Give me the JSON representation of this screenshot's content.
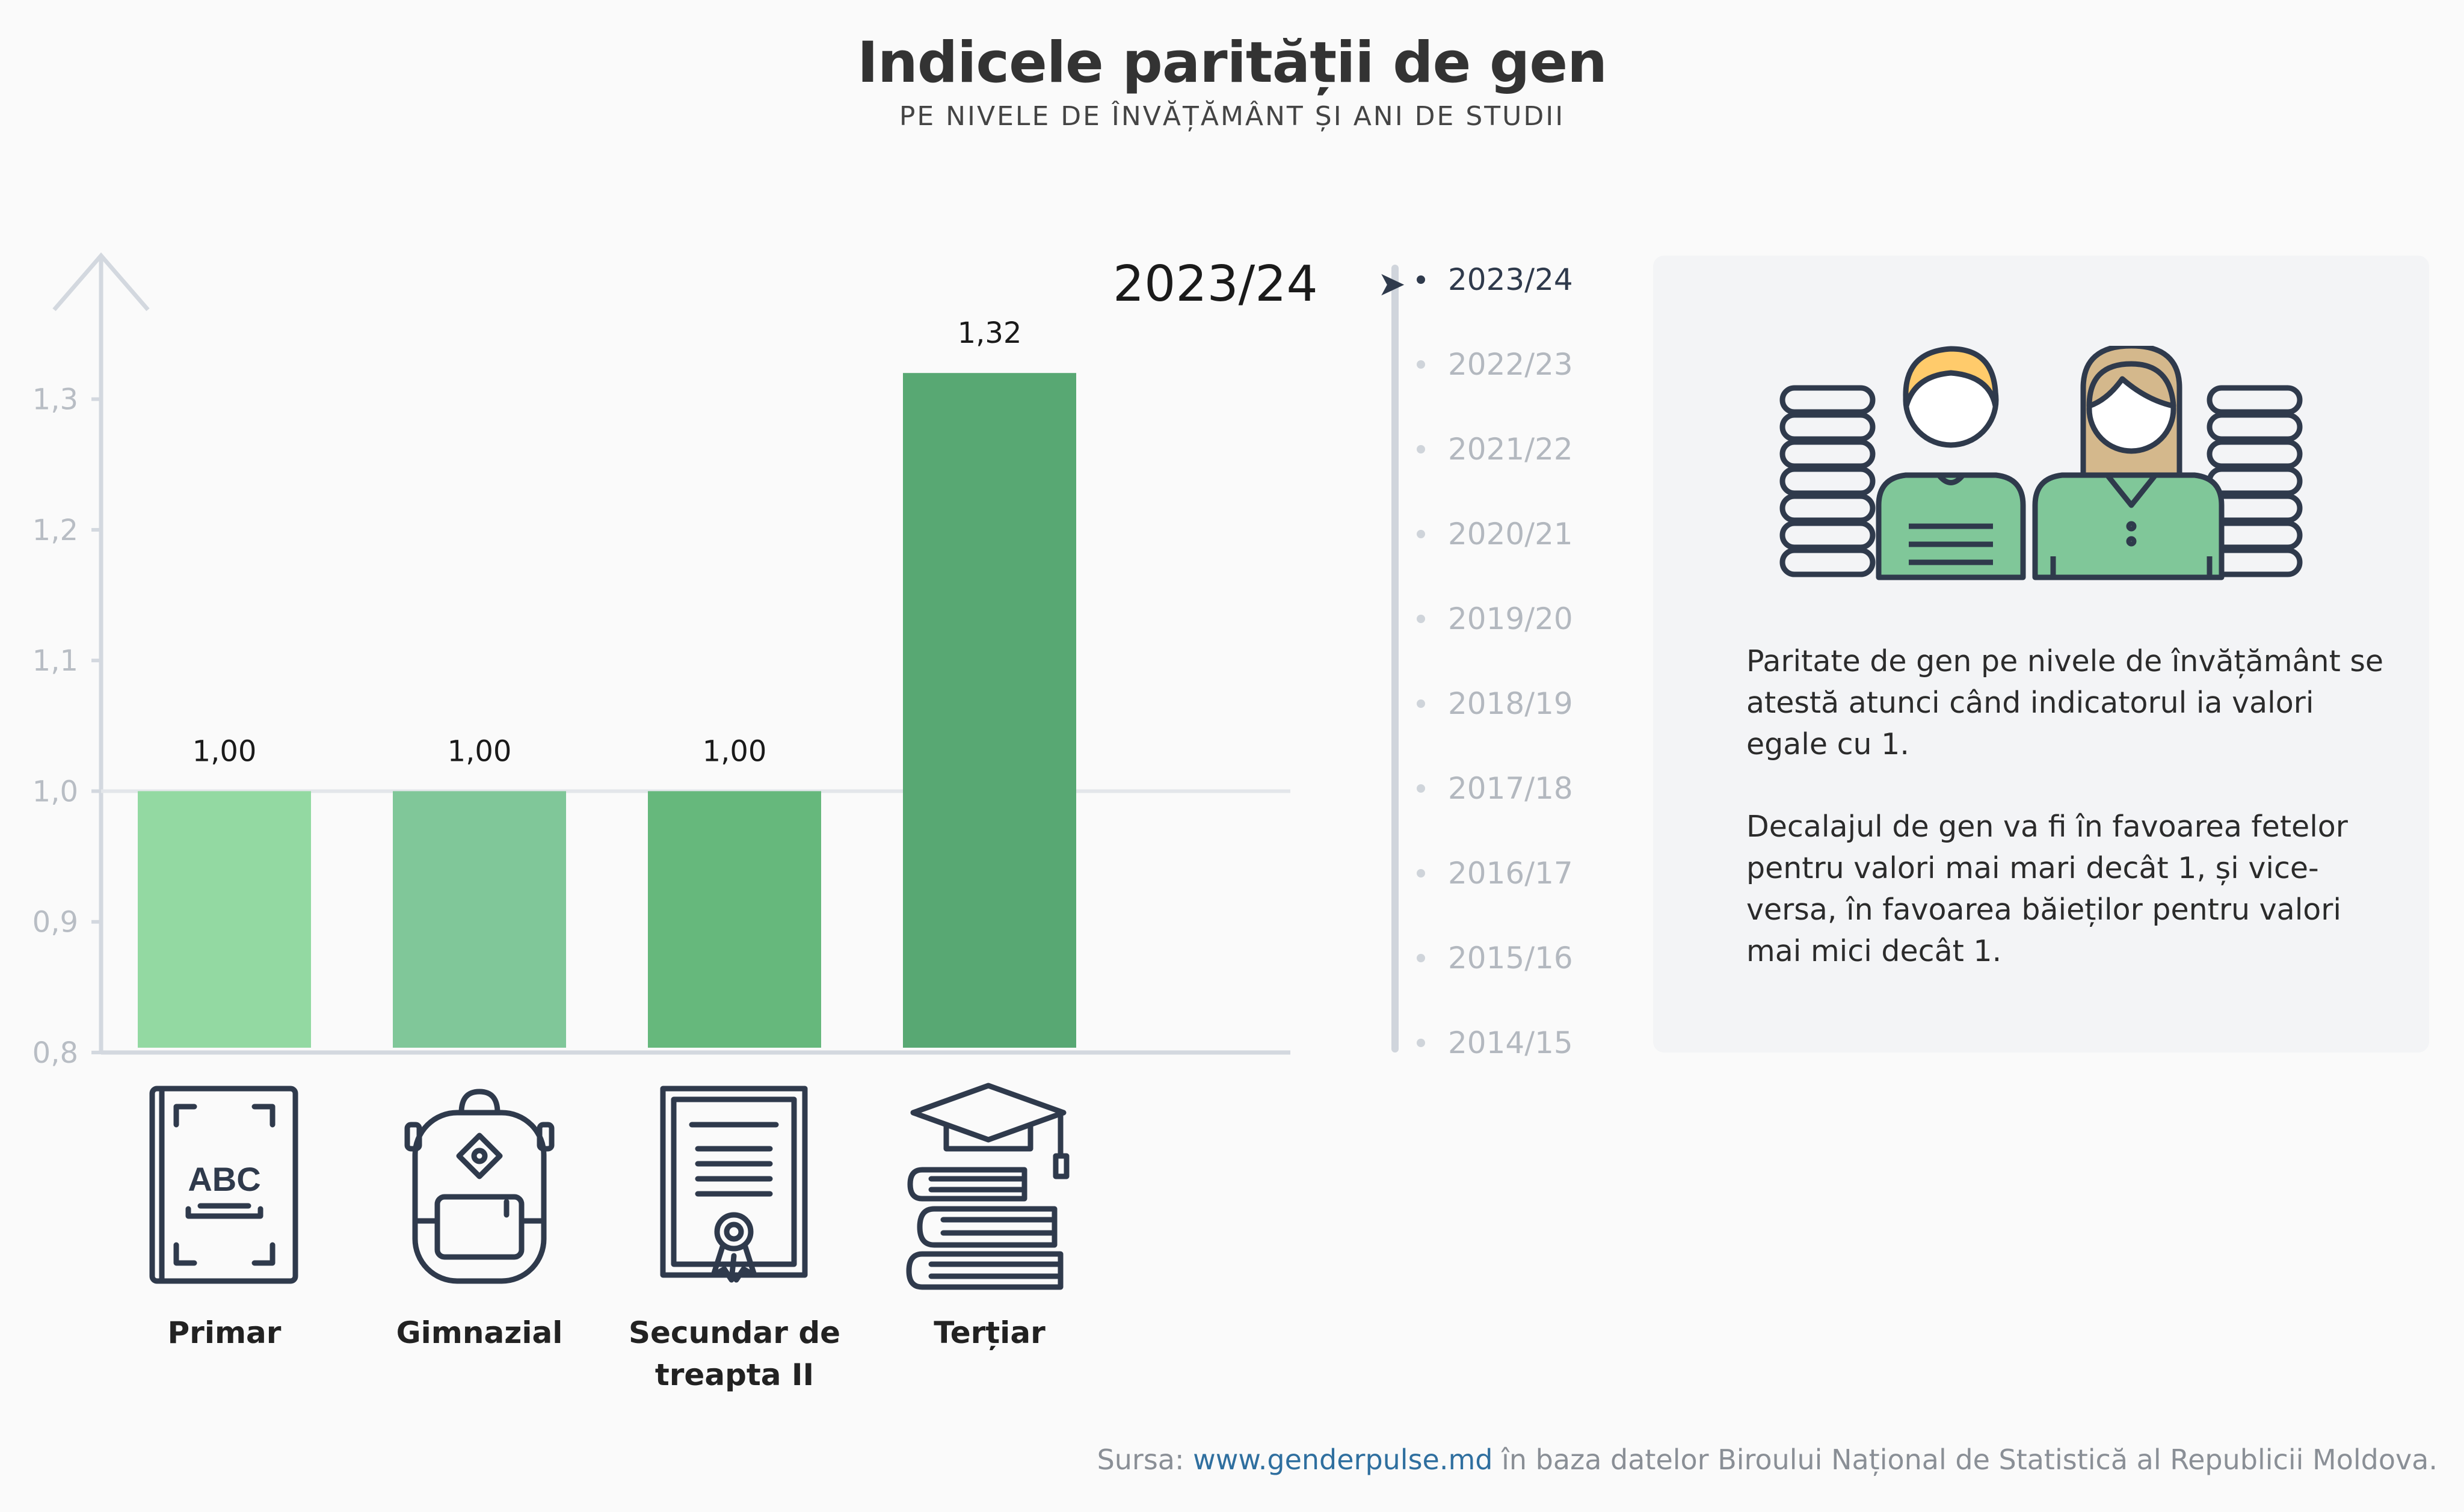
{
  "header": {
    "title": "Indicele parității de gen",
    "subtitle": "PE NIVELE DE ÎNVĂȚĂMÂNT ȘI ANI DE STUDII"
  },
  "selected_year": "2023/24",
  "timeline": {
    "years": [
      "2023/24",
      "2022/23",
      "2021/22",
      "2020/21",
      "2019/20",
      "2018/19",
      "2017/18",
      "2016/17",
      "2015/16",
      "2014/15"
    ],
    "active_index": 0
  },
  "info": {
    "paragraph1": "Paritate de gen pe nivele de învățământ se atestă atunci când indicatorul ia valori egale cu 1.",
    "paragraph2": "Decalajul de gen va fi în favoarea fetelor pentru valori mai mari decât 1, și vice-versa, în favoarea băieților pentru valori mai mici decât 1."
  },
  "source": {
    "prefix": "Sursa: ",
    "link": "www.genderpulse.md",
    "suffix": " în baza datelor Biroului Național de Statistică al Republicii Moldova."
  },
  "colors": {
    "bars": [
      "#93d9a2",
      "#80c799",
      "#66b87c",
      "#58a873"
    ],
    "axis": "#d3d8df",
    "icon_stroke": "#2f3a4c"
  },
  "chart_data": {
    "type": "bar",
    "categories": [
      "Primar",
      "Gimnazial",
      "Secundar de treapta II",
      "Terțiar"
    ],
    "category_lines": [
      [
        "Primar"
      ],
      [
        "Gimnazial"
      ],
      [
        "Secundar de",
        "treapta II"
      ],
      [
        "Terțiar"
      ]
    ],
    "icons": [
      "abc-book-icon",
      "backpack-icon",
      "diploma-icon",
      "books-graduation-cap-icon"
    ],
    "values": [
      1.0,
      1.0,
      1.0,
      1.32
    ],
    "value_labels": [
      "1,00",
      "1,00",
      "1,00",
      "1,32"
    ],
    "reference_line": 1.0,
    "ylim": [
      0.8,
      1.35
    ],
    "yticks": [
      0.8,
      0.9,
      1.0,
      1.1,
      1.2,
      1.3
    ],
    "ytick_labels": [
      "0,8",
      "0,9",
      "1,0",
      "1,1",
      "1,2",
      "1,3"
    ],
    "grid": false,
    "legend": "none"
  }
}
